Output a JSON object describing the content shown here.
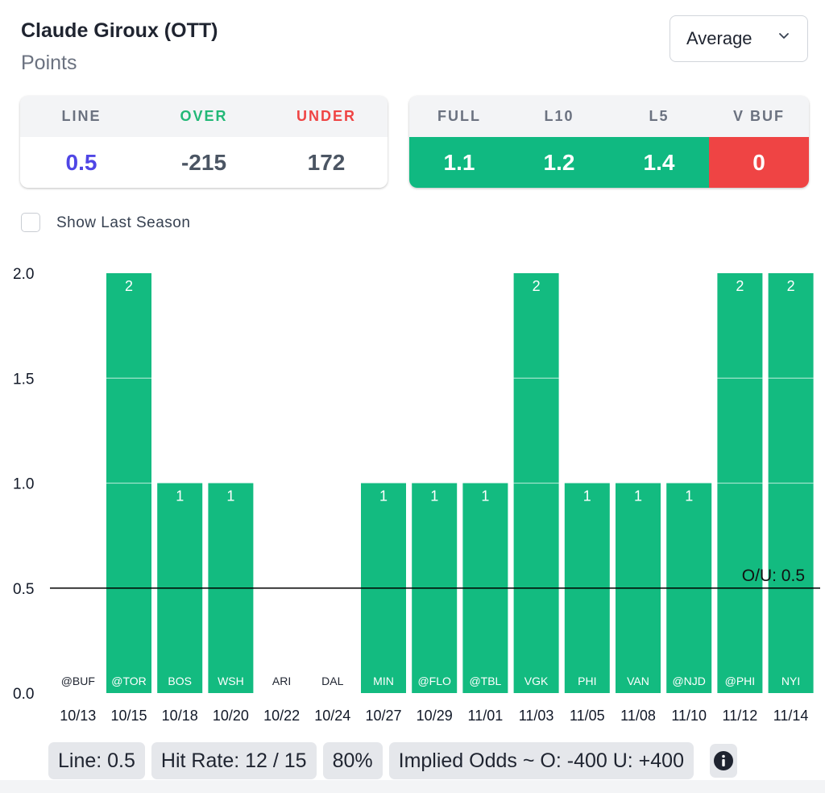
{
  "header": {
    "player": "Claude Giroux (OTT)",
    "stat": "Points",
    "dropdown": {
      "selected": "Average",
      "icon": "chevron-down-icon"
    }
  },
  "odds_card": {
    "headers": [
      "LINE",
      "OVER",
      "UNDER"
    ],
    "header_colors": [
      "#6b7280",
      "#22b877",
      "#ef4444"
    ],
    "values": [
      "0.5",
      "-215",
      "172"
    ],
    "value_colors": [
      "#4f46e5",
      "#4b5563",
      "#4b5563"
    ]
  },
  "avg_card": {
    "headers": [
      "FULL",
      "L10",
      "L5",
      "V BUF"
    ],
    "values": [
      "1.1",
      "1.2",
      "1.4",
      "0"
    ],
    "value_bg": [
      "#10b981",
      "#10b981",
      "#10b981",
      "#ef4444"
    ]
  },
  "toggle": {
    "label": "Show Last Season",
    "checked": false
  },
  "colors": {
    "bar": "#13bb80",
    "line": "#000000",
    "axis_text": "#111827"
  },
  "chart_data": {
    "type": "bar",
    "categories": [
      "10/13",
      "10/15",
      "10/18",
      "10/20",
      "10/22",
      "10/24",
      "10/27",
      "10/29",
      "11/01",
      "11/03",
      "11/05",
      "11/08",
      "11/10",
      "11/12",
      "11/14"
    ],
    "opponents": [
      "@BUF",
      "@TOR",
      "BOS",
      "WSH",
      "ARI",
      "DAL",
      "MIN",
      "@FLO",
      "@TBL",
      "VGK",
      "PHI",
      "VAN",
      "@NJD",
      "@PHI",
      "NYI"
    ],
    "values": [
      0,
      2,
      1,
      1,
      0,
      0,
      1,
      1,
      1,
      2,
      1,
      1,
      1,
      2,
      2
    ],
    "yticks": [
      "0.0",
      "0.5",
      "1.0",
      "1.5",
      "2.0"
    ],
    "ylim": [
      0,
      2
    ],
    "reference_line": {
      "value": 0.5,
      "label": "O/U: 0.5"
    }
  },
  "footer": {
    "line": "Line: 0.5",
    "hit_rate": "Hit Rate: 12 / 15",
    "pct": "80%",
    "implied": "Implied Odds ~ O: -400 U: +400",
    "info_icon": "info-icon"
  }
}
